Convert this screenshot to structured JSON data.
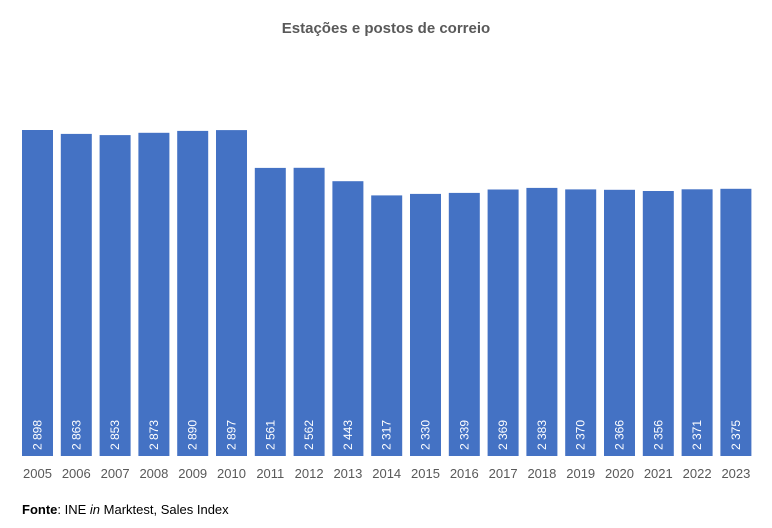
{
  "chart_data": {
    "type": "bar",
    "title": "Estações e postos de correio",
    "xlabel": "",
    "ylabel": "",
    "categories": [
      "2005",
      "2006",
      "2007",
      "2008",
      "2009",
      "2010",
      "2011",
      "2012",
      "2013",
      "2014",
      "2015",
      "2016",
      "2017",
      "2018",
      "2019",
      "2020",
      "2021",
      "2022",
      "2023"
    ],
    "values": [
      2898,
      2863,
      2853,
      2873,
      2890,
      2897,
      2561,
      2562,
      2443,
      2317,
      2330,
      2339,
      2369,
      2383,
      2370,
      2366,
      2356,
      2371,
      2375
    ],
    "value_labels": [
      "2 898",
      "2 863",
      "2 853",
      "2 873",
      "2 890",
      "2 897",
      "2 561",
      "2 562",
      "2 443",
      "2 317",
      "2 330",
      "2 339",
      "2 369",
      "2 383",
      "2 370",
      "2 366",
      "2 356",
      "2 371",
      "2 375"
    ],
    "ylim": [
      0,
      2898
    ],
    "grid": false,
    "legend": "none",
    "bar_color": "#4472C4",
    "label_color": "#ffffff",
    "tick_label_color": "#595959"
  },
  "source": {
    "label": "Fonte",
    "separator": ": ",
    "prefix": "INE ",
    "italic": "in",
    "suffix": " Marktest, Sales Index"
  }
}
